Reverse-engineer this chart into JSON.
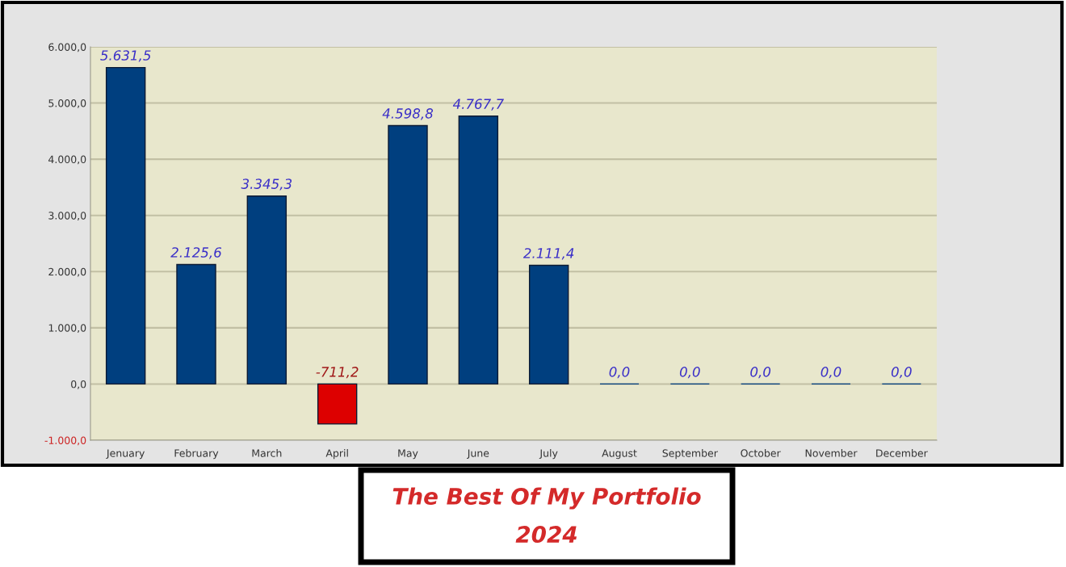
{
  "chart_data": {
    "type": "bar",
    "title": "The Best Of My Portfolio",
    "subtitle": "2024",
    "categories": [
      "Jenuary",
      "February",
      "March",
      "April",
      "May",
      "June",
      "July",
      "August",
      "September",
      "October",
      "November",
      "December"
    ],
    "values": [
      5631.5,
      2125.6,
      3345.3,
      -711.2,
      4598.8,
      4767.7,
      2111.4,
      0,
      0,
      0,
      0,
      0
    ],
    "colors": [
      "#003f7f",
      "#003f7f",
      "#003f7f",
      "#dd0000",
      "#003f7f",
      "#003f7f",
      "#003f7f",
      "#003f7f",
      "#003f7f",
      "#003f7f",
      "#003f7f",
      "#003f7f"
    ],
    "value_labels": [
      "5.631,5",
      "2.125,6",
      "3.345,3",
      "-711,2",
      "4.598,8",
      "4.767,7",
      "2.111,4",
      "0,0",
      "0,0",
      "0,0",
      "0,0",
      "0,0"
    ],
    "ylim": [
      -1000,
      6000
    ],
    "yticks": [
      {
        "value": -1000,
        "label": "-1.000,0"
      },
      {
        "value": 0,
        "label": "0,0"
      },
      {
        "value": 1000,
        "label": "1.000,0"
      },
      {
        "value": 2000,
        "label": "2.000,0"
      },
      {
        "value": 3000,
        "label": "3.000,0"
      },
      {
        "value": 4000,
        "label": "4.000,0"
      },
      {
        "value": 5000,
        "label": "5.000,0"
      },
      {
        "value": 6000,
        "label": "6.000,0"
      }
    ],
    "grid": "y"
  }
}
